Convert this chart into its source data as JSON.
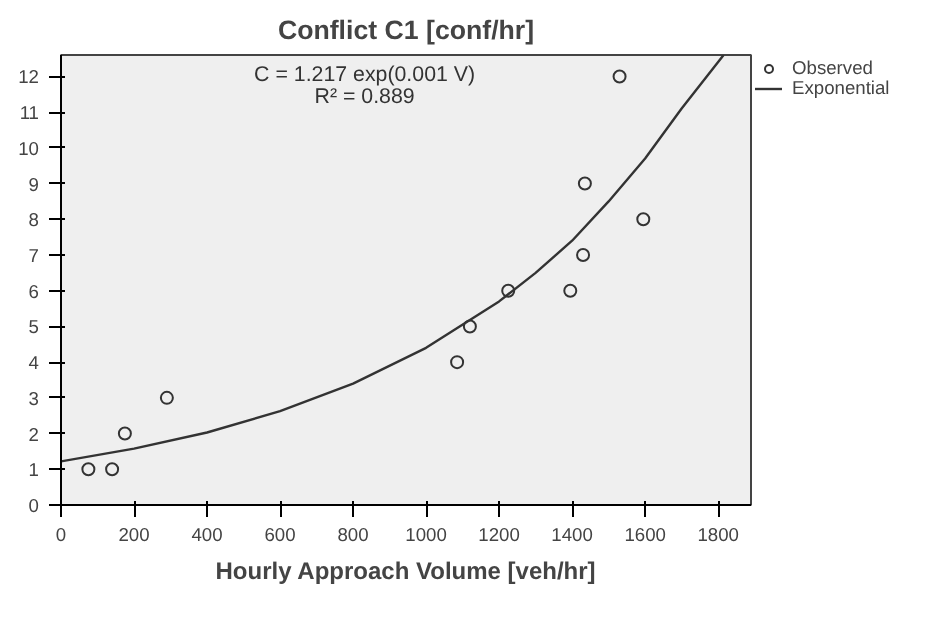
{
  "chart_data": {
    "type": "scatter",
    "title": "Conflict C1 [conf/hr]",
    "xlabel": "Hourly Approach Volume [veh/hr]",
    "annotations": [
      "C = 1.217 exp(0.001 V)",
      "R² = 0.889"
    ],
    "series": [
      {
        "name": "Observed",
        "marker": "circle",
        "color": "#333333",
        "x": [
          75,
          140,
          175,
          290,
          1085,
          1120,
          1225,
          1395,
          1430,
          1435,
          1530,
          1595
        ],
        "values": [
          1,
          1,
          2,
          3,
          4,
          5,
          6,
          6,
          7,
          9,
          12,
          8
        ]
      },
      {
        "name": "Exponential",
        "type": "line",
        "line_style": "solid",
        "color": "#333333",
        "x": [
          0,
          200,
          400,
          600,
          800,
          1000,
          1200,
          1300,
          1400,
          1500,
          1600,
          1700,
          1815
        ],
        "values": [
          1.22,
          1.58,
          2.03,
          2.63,
          3.4,
          4.4,
          5.7,
          6.5,
          7.4,
          8.5,
          9.7,
          11.1,
          12.6
        ]
      }
    ],
    "xlim": [
      0,
      1890
    ],
    "ylim": [
      0,
      12.6
    ],
    "xticks": [
      0,
      200,
      400,
      600,
      800,
      1000,
      1200,
      1400,
      1600,
      1800
    ],
    "yticks": [
      0,
      1,
      2,
      3,
      4,
      5,
      6,
      7,
      8,
      9,
      10,
      11,
      12
    ],
    "grid": false,
    "legend": "top right"
  }
}
